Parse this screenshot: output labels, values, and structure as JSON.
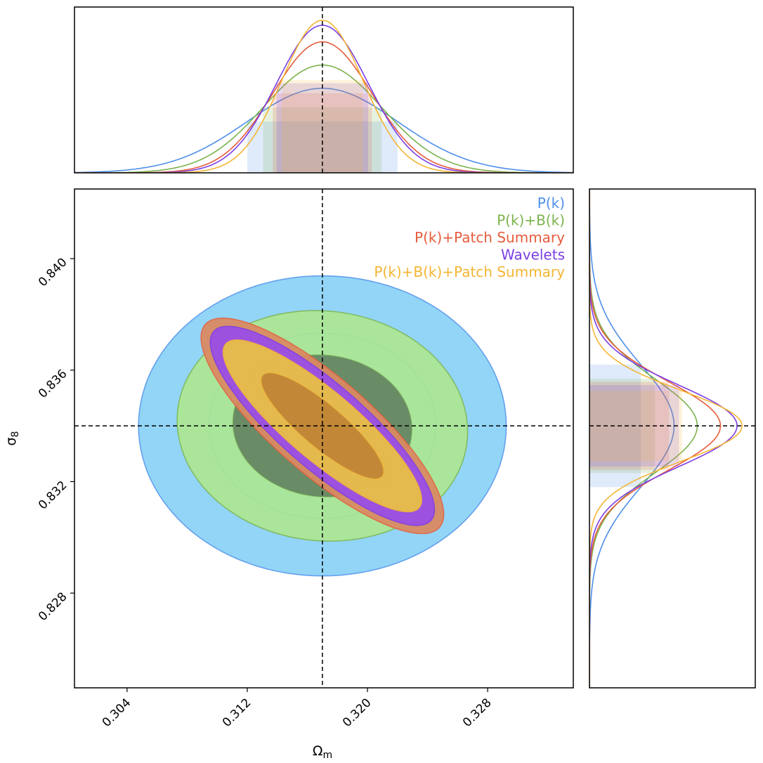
{
  "chart_data": {
    "type": "corner",
    "parameters": [
      "Omega_m",
      "sigma_8"
    ],
    "xlabel": "Ω",
    "xlabel_sub": "m",
    "ylabel": "σ",
    "ylabel_sub": "8",
    "xlim": [
      0.3005,
      0.3337
    ],
    "ylim": [
      0.8246,
      0.8425
    ],
    "xticks": [
      "0.304",
      "0.312",
      "0.320",
      "0.328"
    ],
    "yticks": [
      "0.828",
      "0.832",
      "0.836",
      "0.840"
    ],
    "fiducial": {
      "Omega_m": 0.317,
      "sigma_8": 0.834
    },
    "grid": false,
    "legend_position": "top-right",
    "series": [
      {
        "name": "P(k)",
        "color": "#4e8fea",
        "fill": "#8dd3f7",
        "fill_inner": "#8dd3f7",
        "mean": [
          0.317,
          0.834
        ],
        "sigma": [
          0.005,
          0.0022
        ],
        "rho": 0.0,
        "pdf_peak": 0.51
      },
      {
        "name": "P(k)+B(k)",
        "color": "#7bb34c",
        "fill": "#aee88a",
        "fill_inner": "#5e7d5e",
        "mean": [
          0.317,
          0.834
        ],
        "sigma": [
          0.00395,
          0.00169
        ],
        "rho": -0.05,
        "pdf_peak": 0.65
      },
      {
        "name": "P(k)+Patch Summary",
        "color": "#e55c3c",
        "fill": "#d98a62",
        "fill_inner": "#d98a62",
        "mean": [
          0.317,
          0.834
        ],
        "sigma": [
          0.0033,
          0.00158
        ],
        "rho": -0.82,
        "pdf_peak": 0.79
      },
      {
        "name": "Wavelets",
        "color": "#7b3fe4",
        "fill": "#9a4ee6",
        "fill_inner": "#9a4ee6",
        "mean": [
          0.317,
          0.834
        ],
        "sigma": [
          0.00305,
          0.00146
        ],
        "rho": -0.84,
        "pdf_peak": 0.89
      },
      {
        "name": "P(k)+B(k)+Patch Summary",
        "color": "#f4b533",
        "fill": "#e8bf45",
        "fill_inner": "#a56027",
        "mean": [
          0.317,
          0.834
        ],
        "sigma": [
          0.0027,
          0.00126
        ],
        "rho": -0.86,
        "pdf_peak": 0.92
      }
    ]
  }
}
